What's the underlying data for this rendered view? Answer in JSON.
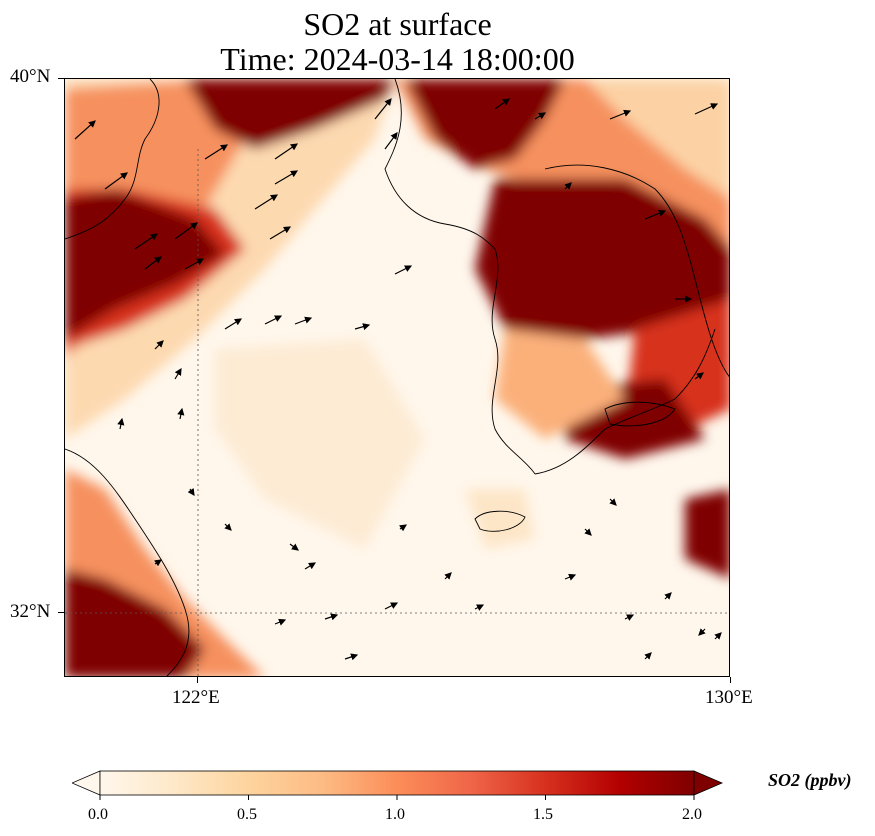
{
  "title": {
    "line1": "SO2 at surface",
    "line2": "Time: 2024-03-14 18:00:00"
  },
  "axes": {
    "lat_labels": [
      "40°N",
      "32°N"
    ],
    "lon_labels": [
      "122°E",
      "130°E"
    ],
    "extent": {
      "lon_min": 120,
      "lon_max": 130,
      "lat_min": 31,
      "lat_max": 40
    },
    "gridlines": {
      "lon": [
        122
      ],
      "lat": [
        32
      ],
      "style": "dotted"
    }
  },
  "colorbar": {
    "label": "SO2 (ppbv)",
    "ticks": [
      "0.0",
      "0.5",
      "1.0",
      "1.5",
      "2.0"
    ],
    "min": 0.0,
    "max": 2.0,
    "colormap": "OrRd",
    "extend": "both",
    "colors": [
      "#fff7ec",
      "#fee8c8",
      "#fdd49e",
      "#fdbb84",
      "#fc8d59",
      "#ef6548",
      "#d7301f",
      "#b30000",
      "#7f0000"
    ]
  },
  "map": {
    "variable": "SO2",
    "level": "surface",
    "overlay": "wind vectors (arrows)",
    "features": [
      "coastlines",
      "country borders"
    ]
  }
}
